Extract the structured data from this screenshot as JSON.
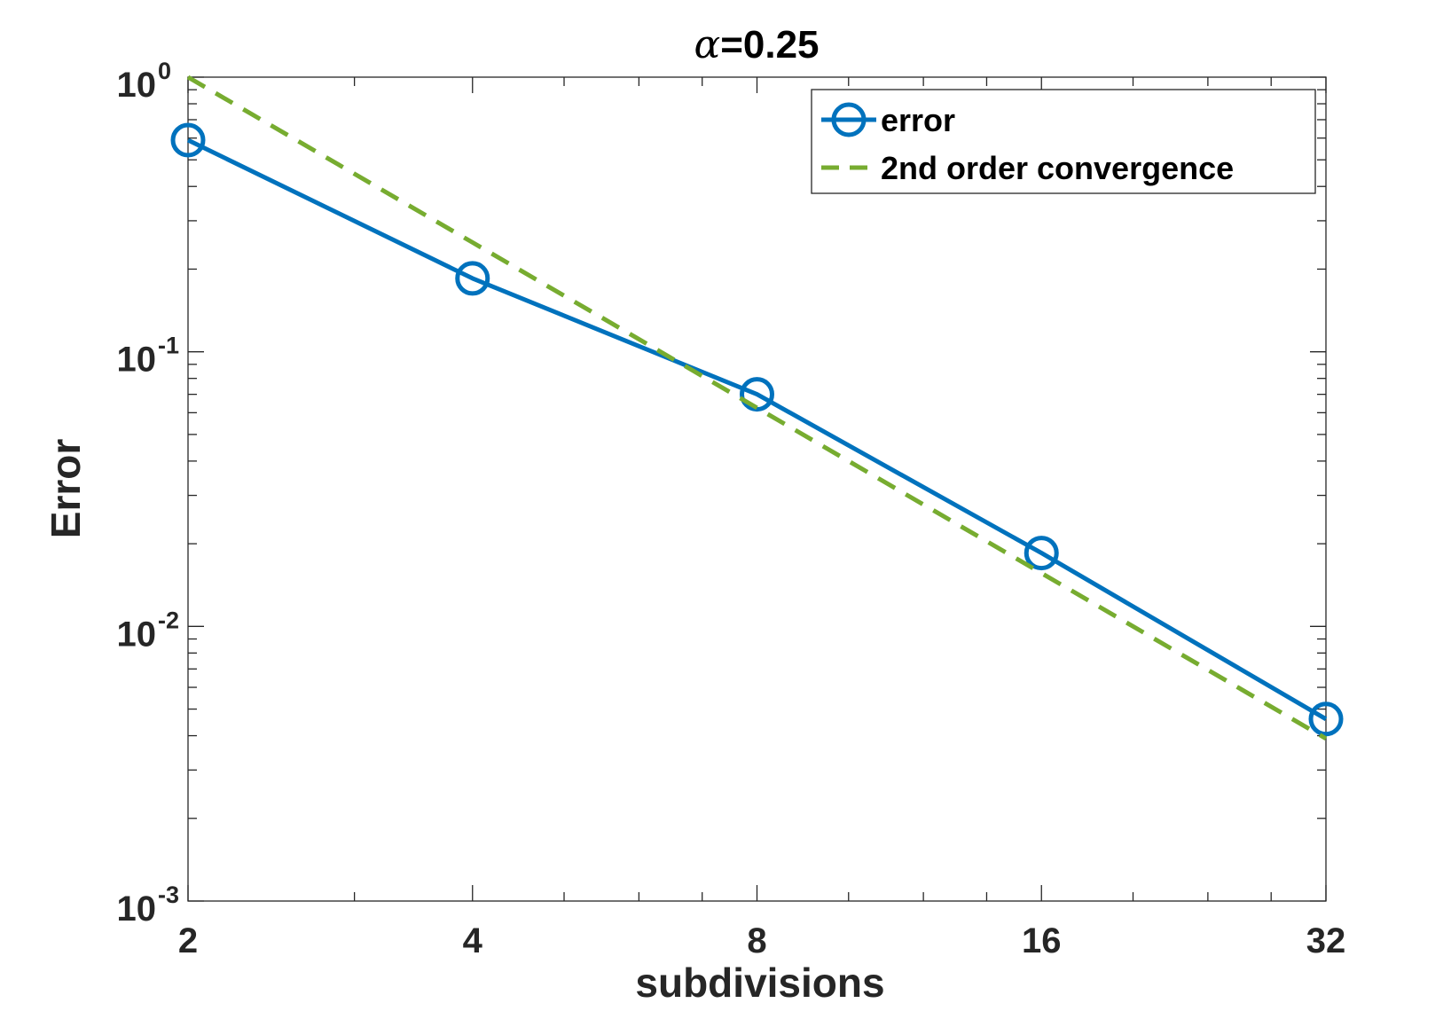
{
  "chart_data": {
    "type": "line",
    "title_symbol": "α",
    "title_rest": "=0.25",
    "xlabel": "subdivisions",
    "ylabel": "Error",
    "xscale": "log2",
    "yscale": "log10",
    "xlim": [
      2,
      32
    ],
    "ylim": [
      0.001,
      1
    ],
    "x_ticks": [
      2,
      4,
      8,
      16,
      32
    ],
    "x_tick_labels": [
      "2",
      "4",
      "8",
      "16",
      "32"
    ],
    "y_ticks": [
      {
        "value": 1,
        "base": "10",
        "exp": "0"
      },
      {
        "value": 0.1,
        "base": "10",
        "exp": "-1"
      },
      {
        "value": 0.01,
        "base": "10",
        "exp": "-2"
      },
      {
        "value": 0.001,
        "base": "10",
        "exp": "-3"
      }
    ],
    "grid": false,
    "legend_position": "top-right",
    "series": [
      {
        "name": "error",
        "color": "#0072bd",
        "style": "solid",
        "marker": "circle",
        "x": [
          2,
          4,
          8,
          16,
          32
        ],
        "y": [
          0.59,
          0.185,
          0.07,
          0.0185,
          0.0046
        ]
      },
      {
        "name": "2nd order convergence",
        "color": "#77ac30",
        "style": "dashed",
        "marker": "none",
        "x": [
          2,
          4,
          8,
          16,
          32
        ],
        "y": [
          1.0,
          0.25,
          0.0625,
          0.015625,
          0.00390625
        ]
      }
    ]
  }
}
